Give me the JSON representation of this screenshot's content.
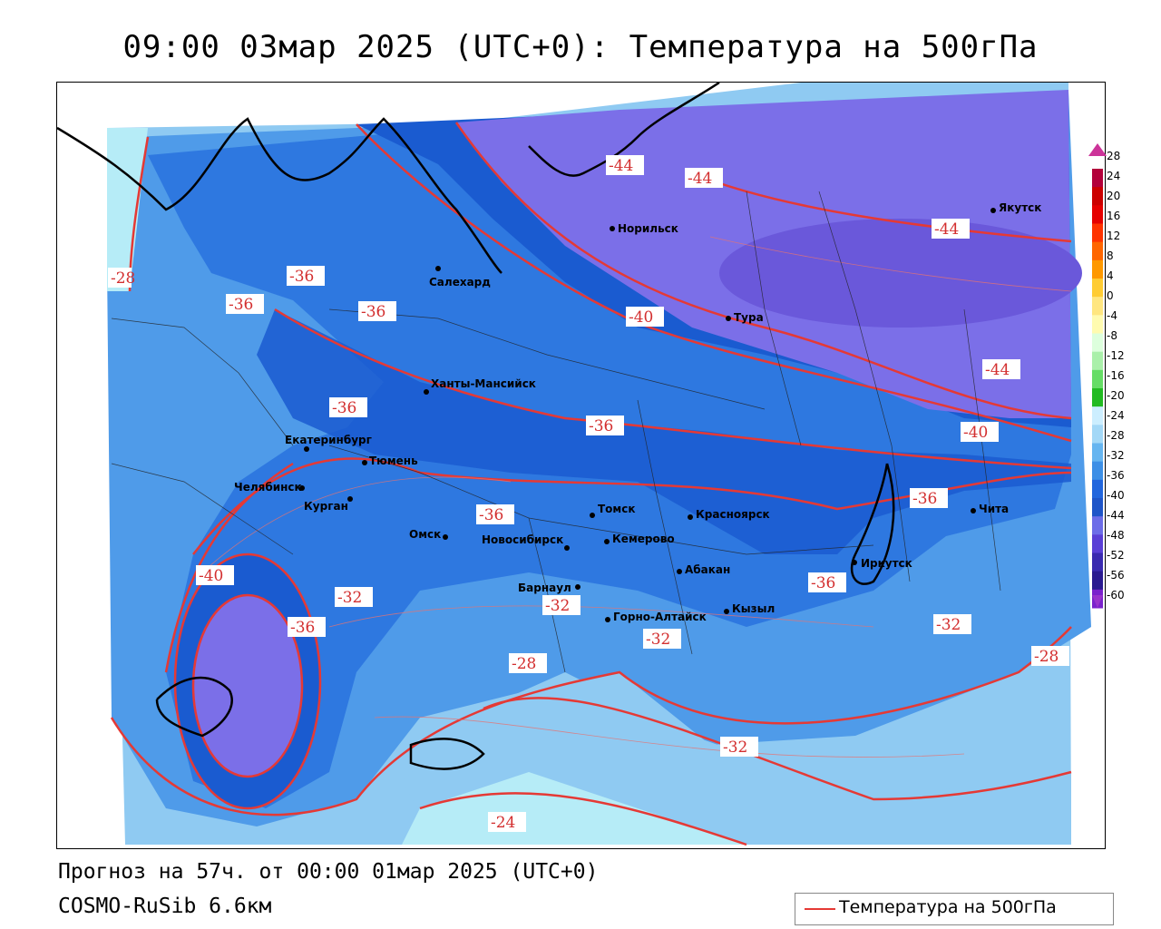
{
  "header": {
    "title": "09:00 03мар 2025 (UTC+0): Температура на 500гПа"
  },
  "footer": {
    "forecast": "Прогноз на 57ч. от 00:00 01мар 2025 (UTC+0)",
    "model": "COSMO-RuSib 6.6км"
  },
  "legend": {
    "label": "Температура на 500гПа",
    "line_color": "#e53935"
  },
  "colorbar": {
    "ticks": [
      "28",
      "24",
      "20",
      "16",
      "12",
      "8",
      "4",
      "0",
      "-4",
      "-8",
      "-12",
      "-16",
      "-20",
      "-24",
      "-28",
      "-32",
      "-36",
      "-40",
      "-44",
      "-48",
      "-52",
      "-56",
      "-60"
    ],
    "colors": [
      "#b3003b",
      "#cc0000",
      "#e60000",
      "#ff3300",
      "#ff6600",
      "#ff9900",
      "#ffcc33",
      "#ffe680",
      "#fffbb0",
      "#ddffdd",
      "#aaf0aa",
      "#66dd66",
      "#22bb22",
      "#cceeff",
      "#a3d8f7",
      "#66b5f0",
      "#3d8fe6",
      "#2266dd",
      "#1f55c8",
      "#6d6de8",
      "#5a3fd6",
      "#3a2ab0",
      "#2a1a90",
      "#7a22cc"
    ]
  },
  "cities": [
    {
      "name": "Салехард"
    },
    {
      "name": "Норильск"
    },
    {
      "name": "Якутск"
    },
    {
      "name": "Тура"
    },
    {
      "name": "Ханты-Мансийск"
    },
    {
      "name": "Екатеринбург"
    },
    {
      "name": "Тюмень"
    },
    {
      "name": "Челябинск"
    },
    {
      "name": "Курган"
    },
    {
      "name": "Омск"
    },
    {
      "name": "Томск"
    },
    {
      "name": "Красноярск"
    },
    {
      "name": "Новосибирск"
    },
    {
      "name": "Кемерово"
    },
    {
      "name": "Абакан"
    },
    {
      "name": "Иркутск"
    },
    {
      "name": "Чита"
    },
    {
      "name": "Барнаул"
    },
    {
      "name": "Горно-Алтайск"
    },
    {
      "name": "Кызыл"
    }
  ],
  "isotherm_labels": [
    "-44",
    "-44",
    "-44",
    "-44",
    "-40",
    "-40",
    "-40",
    "-36",
    "-36",
    "-36",
    "-36",
    "-36",
    "-36",
    "-36",
    "-36",
    "-36",
    "-32",
    "-32",
    "-32",
    "-32",
    "-32",
    "-28",
    "-28",
    "-28",
    "-24"
  ],
  "colors": {
    "t_m24": "#b6ecf7",
    "t_m28": "#8fcaf2",
    "t_m32": "#4f9be9",
    "t_m36": "#2e78e0",
    "t_m40": "#1a5bd0",
    "t_m44": "#7b6fe8",
    "t_m48": "#6a58da",
    "isotherm": "#e53935"
  }
}
